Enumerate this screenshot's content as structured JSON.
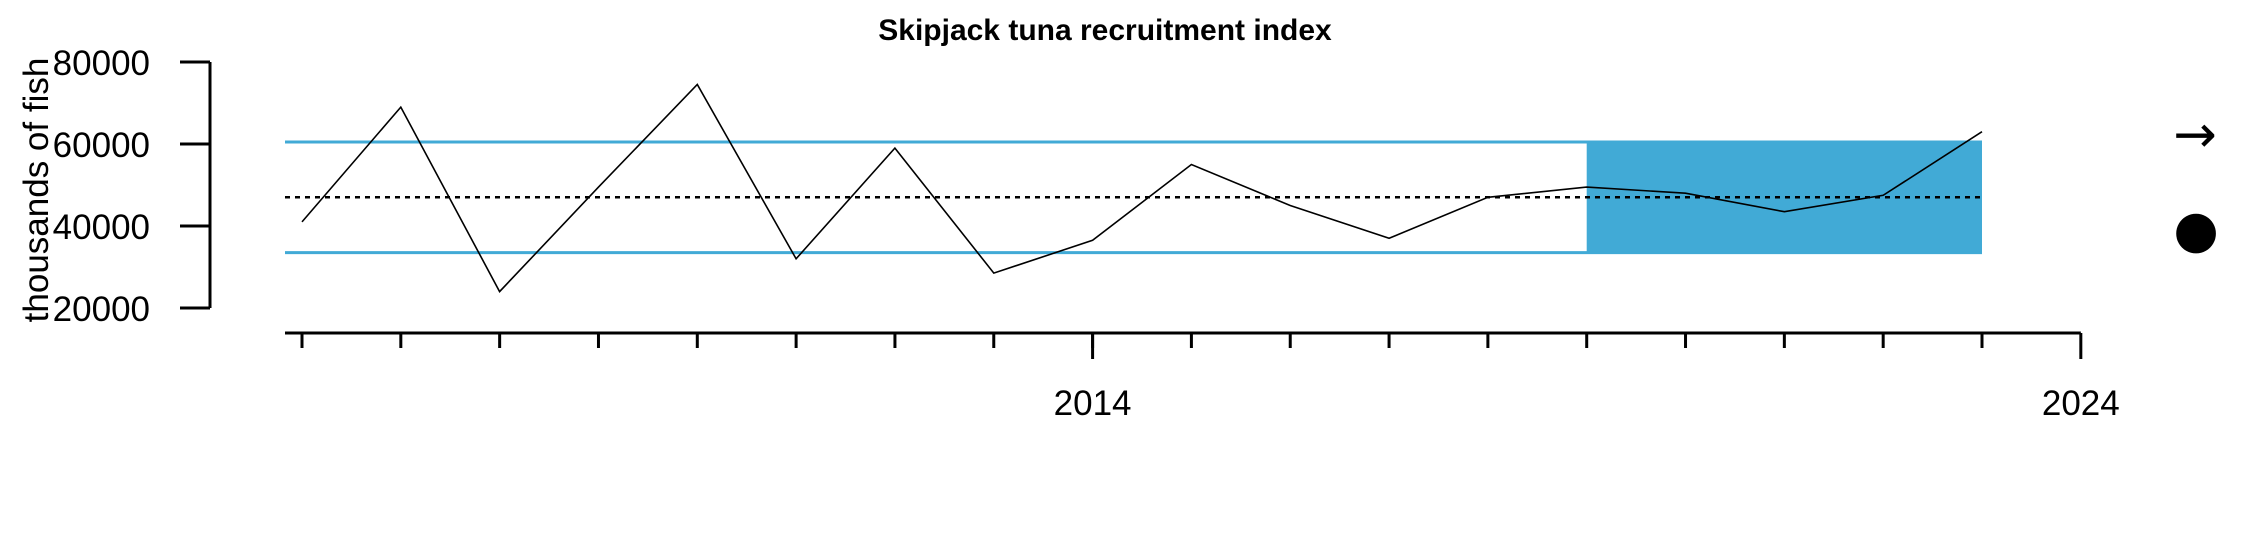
{
  "chart_data": {
    "type": "line",
    "title": "Skipjack tuna recruitment index",
    "xlabel": "",
    "ylabel": "thousands of fish",
    "x": [
      2006,
      2007,
      2008,
      2009,
      2010,
      2011,
      2012,
      2013,
      2014,
      2015,
      2016,
      2017,
      2018,
      2019,
      2020,
      2021,
      2022,
      2023
    ],
    "series": [
      {
        "values": [
          41000,
          69000,
          24000,
          49500,
          74500,
          32000,
          59000,
          28500,
          36500,
          55000,
          45000,
          37000,
          47000,
          49500,
          48000,
          43500,
          47500,
          63000
        ]
      }
    ],
    "mean_line": 47000,
    "upper_band": 60500,
    "lower_band": 33500,
    "highlight_range": [
      2019,
      2023
    ],
    "xlim": [
      2005.7,
      2024
    ],
    "ylim": [
      17500,
      80000
    ],
    "x_tick_labels": [
      "2014",
      "2024"
    ],
    "y_tick_labels": [
      "80000",
      "60000",
      "40000",
      "20000"
    ],
    "y_ticks": [
      80000,
      60000,
      40000,
      20000
    ],
    "grid": false,
    "legend": "none"
  },
  "colors": {
    "band_line": "#41AAD6",
    "highlight_fill": "#41AAD6",
    "series_line": "#000000",
    "mean_line": "#000000"
  },
  "side_icons": {
    "arrow": {
      "name": "right-arrow-icon",
      "glyph": "→"
    },
    "dot": {
      "name": "filled-dot-icon",
      "glyph": "●"
    }
  }
}
